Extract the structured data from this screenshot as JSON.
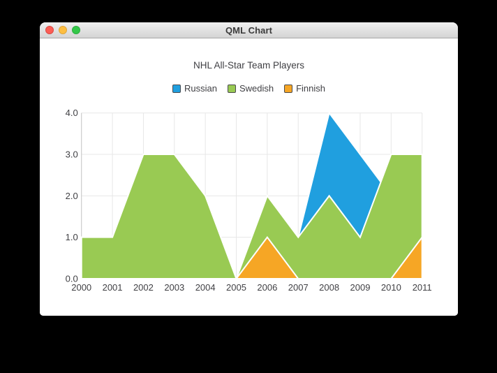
{
  "window": {
    "title": "QML Chart",
    "controls": [
      {
        "name": "close",
        "color": "#fc5d55",
        "border": "#d94b44"
      },
      {
        "name": "minimize",
        "color": "#fdbe41",
        "border": "#dea63c"
      },
      {
        "name": "zoom",
        "color": "#34c849",
        "border": "#2fad41"
      }
    ]
  },
  "chart": {
    "title": "NHL All-Star Team Players",
    "legend": [
      {
        "label": "Russian",
        "color": "#209fdf"
      },
      {
        "label": "Swedish",
        "color": "#99ca53"
      },
      {
        "label": "Finnish",
        "color": "#f6a625"
      }
    ]
  },
  "chart_data": {
    "type": "area",
    "title": "NHL All-Star Team Players",
    "stacked": false,
    "note": "Overlapping area series drawn in order Russian, Swedish, Finnish; each area outlined in white and baselined at y=0",
    "x": [
      2000,
      2001,
      2002,
      2003,
      2004,
      2005,
      2006,
      2007,
      2008,
      2009,
      2010,
      2011
    ],
    "series": [
      {
        "name": "Russian",
        "color": "#209fdf",
        "values": [
          1,
          1,
          1,
          1,
          1,
          0,
          1,
          1,
          4,
          3,
          2,
          1
        ]
      },
      {
        "name": "Swedish",
        "color": "#99ca53",
        "values": [
          1,
          1,
          3,
          3,
          2,
          0,
          2,
          1,
          2,
          1,
          3,
          3
        ]
      },
      {
        "name": "Finnish",
        "color": "#f6a625",
        "values": [
          0,
          0,
          0,
          0,
          0,
          0,
          1,
          0,
          0,
          0,
          0,
          1
        ]
      }
    ],
    "xlim": [
      2000,
      2011
    ],
    "ylim": [
      0,
      4
    ],
    "x_tick_labels": [
      "2000",
      "2001",
      "2002",
      "2003",
      "2004",
      "2005",
      "2006",
      "2007",
      "2008",
      "2009",
      "2010",
      "2011"
    ],
    "y_tick_values": [
      0,
      1,
      2,
      3,
      4
    ],
    "y_tick_labels": [
      "0.0",
      "1.0",
      "2.0",
      "3.0",
      "4.0"
    ],
    "grid": true,
    "legend_position": "top",
    "grid_color": "#e7e7e7",
    "axis_color": "#c9c9c9",
    "label_color": "#404044",
    "area_border_color": "#ffffff"
  }
}
